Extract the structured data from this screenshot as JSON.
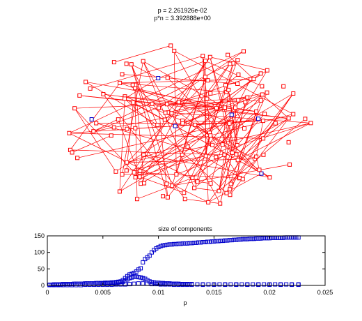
{
  "figure": {
    "graph_title_line1": "p = 2.261926e-02",
    "graph_title_line2": "p*n = 3.392888e+00",
    "node_color": "#ff0000",
    "highlight_node_color": "#0000cc",
    "edge_color": "#ff0000",
    "node_marker": "square"
  },
  "chart_data": {
    "type": "scatter",
    "title": "size of components",
    "xlabel": "p",
    "ylabel": "",
    "xlim": [
      0,
      0.025
    ],
    "ylim": [
      0,
      150
    ],
    "xticks": [
      "0",
      "0.005",
      "0.01",
      "0.015",
      "0.02",
      "0.025"
    ],
    "yticks": [
      "0",
      "50",
      "100",
      "150"
    ],
    "grid": false,
    "marker": "square",
    "marker_color": "#0000cc",
    "series": [
      {
        "role": "largest",
        "x": [
          0.0002,
          0.0004,
          0.0006,
          0.0008,
          0.001,
          0.0012,
          0.0014,
          0.0016,
          0.0018,
          0.002,
          0.0022,
          0.0024,
          0.0026,
          0.0028,
          0.003,
          0.0032,
          0.0034,
          0.0036,
          0.0038,
          0.004,
          0.0042,
          0.0044,
          0.0046,
          0.0048,
          0.005,
          0.0052,
          0.0054,
          0.0056,
          0.0058,
          0.006,
          0.0062,
          0.0064,
          0.0066,
          0.0068,
          0.007,
          0.0072,
          0.0074,
          0.0076,
          0.0078,
          0.008,
          0.0082,
          0.0084,
          0.0086,
          0.0088,
          0.009,
          0.0092,
          0.0094,
          0.0096,
          0.0098,
          0.01,
          0.0102,
          0.0104,
          0.0106,
          0.0108,
          0.011,
          0.0112,
          0.0114,
          0.0116,
          0.0118,
          0.012,
          0.0122,
          0.0124,
          0.0126,
          0.0128,
          0.013,
          0.0132,
          0.0134,
          0.0136,
          0.0138,
          0.014,
          0.0142,
          0.0144,
          0.0146,
          0.0148,
          0.015,
          0.0152,
          0.0154,
          0.0156,
          0.0158,
          0.016,
          0.0162,
          0.0164,
          0.0166,
          0.0168,
          0.017,
          0.0172,
          0.0174,
          0.0176,
          0.0178,
          0.018,
          0.0182,
          0.0184,
          0.0186,
          0.0188,
          0.019,
          0.0192,
          0.0194,
          0.0196,
          0.0198,
          0.02,
          0.0202,
          0.0204,
          0.0206,
          0.0208,
          0.021,
          0.0212,
          0.0214,
          0.0216,
          0.0218,
          0.022,
          0.0222,
          0.0224,
          0.0226
        ],
        "y": [
          2,
          2,
          3,
          3,
          3,
          3,
          4,
          4,
          4,
          4,
          4,
          5,
          5,
          5,
          5,
          5,
          6,
          6,
          6,
          6,
          6,
          7,
          7,
          7,
          7,
          8,
          8,
          8,
          9,
          9,
          10,
          11,
          12,
          16,
          22,
          28,
          33,
          35,
          38,
          42,
          48,
          52,
          70,
          80,
          85,
          90,
          100,
          107,
          112,
          116,
          119,
          121,
          122,
          123,
          124,
          124,
          125,
          125,
          126,
          126,
          127,
          127,
          127,
          128,
          128,
          129,
          129,
          130,
          130,
          131,
          131,
          132,
          132,
          133,
          133,
          134,
          134,
          135,
          135,
          136,
          136,
          137,
          137,
          138,
          138,
          139,
          139,
          140,
          140,
          140,
          141,
          141,
          141,
          142,
          142,
          142,
          143,
          143,
          143,
          143,
          144,
          144,
          144,
          144,
          144,
          144,
          145,
          145,
          145,
          145,
          145,
          145,
          145
        ]
      },
      {
        "role": "second",
        "x": [
          0.0048,
          0.005,
          0.0052,
          0.0054,
          0.0056,
          0.0058,
          0.006,
          0.0062,
          0.0064,
          0.0066,
          0.0068,
          0.007,
          0.0072,
          0.0074,
          0.0076,
          0.0078,
          0.008,
          0.0082,
          0.0084,
          0.0086,
          0.0088,
          0.009,
          0.0092,
          0.0094,
          0.0096,
          0.0098,
          0.01,
          0.0102,
          0.0104,
          0.0106,
          0.0108,
          0.011,
          0.0112,
          0.0114,
          0.0116,
          0.0118,
          0.012,
          0.0122,
          0.0124,
          0.0126,
          0.0128,
          0.013,
          0.0135,
          0.014,
          0.0145,
          0.015,
          0.0155,
          0.016,
          0.0165,
          0.017,
          0.0175,
          0.018,
          0.0185,
          0.019,
          0.0195,
          0.02,
          0.0205,
          0.021,
          0.0215,
          0.022,
          0.0226
        ],
        "y": [
          6,
          6,
          6,
          7,
          7,
          7,
          8,
          8,
          9,
          10,
          11,
          14,
          18,
          22,
          24,
          26,
          27,
          25,
          24,
          22,
          20,
          16,
          12,
          10,
          9,
          8,
          8,
          7,
          7,
          6,
          6,
          6,
          5,
          5,
          5,
          5,
          4,
          4,
          4,
          4,
          4,
          4,
          3,
          3,
          3,
          3,
          3,
          3,
          3,
          3,
          3,
          3,
          3,
          3,
          3,
          3,
          3,
          3,
          3,
          3,
          3
        ]
      },
      {
        "role": "small",
        "x": [
          0.0002,
          0.0006,
          0.001,
          0.0014,
          0.0018,
          0.0022,
          0.0026,
          0.003,
          0.0034,
          0.0038,
          0.0042,
          0.0046,
          0.005,
          0.0054,
          0.0058,
          0.0062,
          0.0066,
          0.007,
          0.0074,
          0.0078,
          0.0082,
          0.0086,
          0.009,
          0.0094,
          0.0098,
          0.0102,
          0.0106,
          0.011,
          0.0114,
          0.0118,
          0.0122,
          0.0126,
          0.013,
          0.014,
          0.015,
          0.016,
          0.017,
          0.018,
          0.019,
          0.02,
          0.021,
          0.022,
          0.0226
        ],
        "y": [
          1,
          1,
          1,
          1,
          1,
          1,
          1,
          1,
          2,
          2,
          2,
          2,
          2,
          2,
          2,
          3,
          3,
          3,
          4,
          5,
          6,
          6,
          5,
          4,
          4,
          3,
          3,
          3,
          2,
          2,
          2,
          2,
          2,
          2,
          2,
          2,
          2,
          2,
          2,
          2,
          2,
          2,
          2
        ]
      }
    ]
  }
}
